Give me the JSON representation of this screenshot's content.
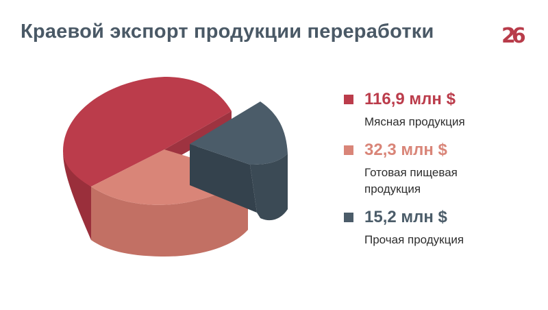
{
  "slide": {
    "title": "Краевой экспорт продукции переработки",
    "logo_text": "26"
  },
  "colors": {
    "meat": "#bb3c4b",
    "meat_side": "#9a2f3b",
    "food": "#d98578",
    "food_side": "#c27064",
    "other": "#4b5c69",
    "other_side": "#3b4a55",
    "title": "#4a5966"
  },
  "chart_data": {
    "type": "pie",
    "style": "3d-exploded",
    "title": "Краевой экспорт продукции переработки",
    "unit": "млн $",
    "series": [
      {
        "name": "Мясная продукция",
        "value": 116.9,
        "label": "116,9 млн $",
        "color": "#bb3c4b"
      },
      {
        "name": "Готовая пищевая продукция",
        "value": 32.3,
        "label": "32,3 млн $",
        "color": "#d98578"
      },
      {
        "name": "Прочая продукция",
        "value": 15.2,
        "label": "15,2 млн $",
        "color": "#4b5c69"
      }
    ],
    "legend_position": "right"
  }
}
